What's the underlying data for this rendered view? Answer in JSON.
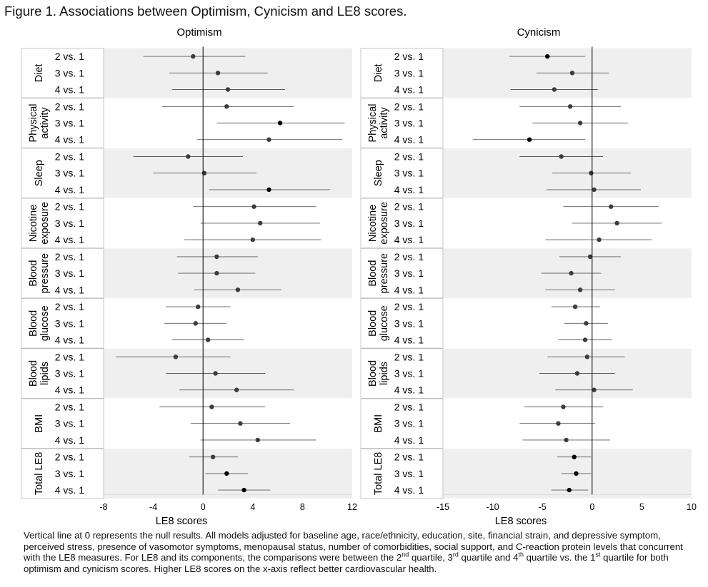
{
  "figure_title": "Figure 1. Associations between Optimism, Cynicism and LE8 scores.",
  "caption": {
    "line1": "Vertical line at 0 represents the null results. All models adjusted for baseline age, race/ethnicity, education, site, financial strain, and depressive symptom, perceived stress, presence of vasomotor symptoms, menopausal status, number of comorbidities, social support, and C-reaction protein levels that concurrent with the LE8 measures. For LE8 and its components, the comparisons were between the 2",
    "sup_nd": "nd",
    "line2": " quartile, 3",
    "sup_rd": "rd",
    "line3": " quartile and 4",
    "sup_th": "th",
    "line4": " quartile vs. the 1",
    "sup_st": "st",
    "line5": " quartile for both optimism and cynicism scores. Higher LE8 scores on the x-axis reflect better cardiovascular health."
  },
  "colors": {
    "band": "#efefef",
    "point_sig": "#000000",
    "point_ns": "#3c3c3c",
    "ci": "#5a5a5a",
    "axis": "#000000"
  },
  "chart_data": [
    {
      "type": "forest",
      "title": "Optimism",
      "xlabel": "LE8 scores",
      "xlim": [
        -8,
        12
      ],
      "xticks": [
        -8,
        -4,
        0,
        4,
        8,
        12
      ],
      "groups": [
        {
          "label": [
            "Diet"
          ],
          "rows": [
            {
              "label": "2 vs. 1",
              "est": -0.8,
              "lo": -4.8,
              "hi": 3.4
            },
            {
              "label": "3 vs. 1",
              "est": 1.2,
              "lo": -2.7,
              "hi": 5.2
            },
            {
              "label": "4 vs. 1",
              "est": 2.0,
              "lo": -2.5,
              "hi": 6.6
            }
          ]
        },
        {
          "label": [
            "Physical",
            "activity"
          ],
          "rows": [
            {
              "label": "2 vs. 1",
              "est": 1.9,
              "lo": -3.3,
              "hi": 7.3
            },
            {
              "label": "3 vs. 1",
              "est": 6.2,
              "lo": 1.1,
              "hi": 11.4
            },
            {
              "label": "4 vs. 1",
              "est": 5.3,
              "lo": -0.5,
              "hi": 11.2
            }
          ]
        },
        {
          "label": [
            "Sleep"
          ],
          "rows": [
            {
              "label": "2 vs. 1",
              "est": -1.2,
              "lo": -5.6,
              "hi": 3.2
            },
            {
              "label": "3 vs. 1",
              "est": 0.1,
              "lo": -4.0,
              "hi": 4.3
            },
            {
              "label": "4 vs. 1",
              "est": 5.3,
              "lo": 0.5,
              "hi": 10.2
            }
          ]
        },
        {
          "label": [
            "Nicotine",
            "exposure"
          ],
          "rows": [
            {
              "label": "2 vs. 1",
              "est": 4.1,
              "lo": -0.8,
              "hi": 9.1
            },
            {
              "label": "3 vs. 1",
              "est": 4.6,
              "lo": -0.2,
              "hi": 9.4
            },
            {
              "label": "4 vs. 1",
              "est": 4.0,
              "lo": -1.5,
              "hi": 9.5
            }
          ]
        },
        {
          "label": [
            "Blood",
            "pressure"
          ],
          "rows": [
            {
              "label": "2 vs. 1",
              "est": 1.1,
              "lo": -2.1,
              "hi": 4.4
            },
            {
              "label": "3 vs. 1",
              "est": 1.1,
              "lo": -2.0,
              "hi": 4.2
            },
            {
              "label": "4 vs. 1",
              "est": 2.8,
              "lo": -0.7,
              "hi": 6.3
            }
          ]
        },
        {
          "label": [
            "Blood",
            "glucose"
          ],
          "rows": [
            {
              "label": "2 vs. 1",
              "est": -0.4,
              "lo": -3.0,
              "hi": 2.2
            },
            {
              "label": "3 vs. 1",
              "est": -0.6,
              "lo": -3.1,
              "hi": 1.9
            },
            {
              "label": "4 vs. 1",
              "est": 0.4,
              "lo": -2.5,
              "hi": 3.3
            }
          ]
        },
        {
          "label": [
            "Blood",
            "lipids"
          ],
          "rows": [
            {
              "label": "2 vs. 1",
              "est": -2.2,
              "lo": -7.0,
              "hi": 2.2
            },
            {
              "label": "3 vs. 1",
              "est": 1.0,
              "lo": -3.0,
              "hi": 5.0
            },
            {
              "label": "4 vs. 1",
              "est": 2.7,
              "lo": -1.9,
              "hi": 7.3
            }
          ]
        },
        {
          "label": [
            "BMI"
          ],
          "rows": [
            {
              "label": "2 vs. 1",
              "est": 0.7,
              "lo": -3.5,
              "hi": 5.0
            },
            {
              "label": "3 vs. 1",
              "est": 3.0,
              "lo": -1.0,
              "hi": 7.0
            },
            {
              "label": "4 vs. 1",
              "est": 4.4,
              "lo": -0.2,
              "hi": 9.1
            }
          ]
        },
        {
          "label": [
            "Total LE8"
          ],
          "rows": [
            {
              "label": "2 vs. 1",
              "est": 0.8,
              "lo": -1.1,
              "hi": 2.8
            },
            {
              "label": "3 vs. 1",
              "est": 1.9,
              "lo": 0.2,
              "hi": 3.6
            },
            {
              "label": "4 vs. 1",
              "est": 3.3,
              "lo": 1.2,
              "hi": 5.4
            }
          ]
        }
      ]
    },
    {
      "type": "forest",
      "title": "Cynicism",
      "xlabel": "LE8 scores",
      "xlim": [
        -15,
        10
      ],
      "xticks": [
        -15,
        -10,
        -5,
        0,
        5,
        10
      ],
      "groups": [
        {
          "label": [
            "Diet"
          ],
          "rows": [
            {
              "label": "2 vs. 1",
              "est": -4.5,
              "lo": -8.3,
              "hi": -0.7
            },
            {
              "label": "3 vs. 1",
              "est": -2.0,
              "lo": -5.6,
              "hi": 1.7
            },
            {
              "label": "4 vs. 1",
              "est": -3.8,
              "lo": -8.2,
              "hi": 0.6
            }
          ]
        },
        {
          "label": [
            "Physical",
            "activity"
          ],
          "rows": [
            {
              "label": "2 vs. 1",
              "est": -2.2,
              "lo": -7.3,
              "hi": 2.9
            },
            {
              "label": "3 vs. 1",
              "est": -1.2,
              "lo": -6.0,
              "hi": 3.6
            },
            {
              "label": "4 vs. 1",
              "est": -6.3,
              "lo": -12.0,
              "hi": -0.7
            }
          ]
        },
        {
          "label": [
            "Sleep"
          ],
          "rows": [
            {
              "label": "2 vs. 1",
              "est": -3.1,
              "lo": -7.3,
              "hi": 1.1
            },
            {
              "label": "3 vs. 1",
              "est": -0.1,
              "lo": -4.0,
              "hi": 3.9
            },
            {
              "label": "4 vs. 1",
              "est": 0.2,
              "lo": -4.6,
              "hi": 4.9
            }
          ]
        },
        {
          "label": [
            "Nicotine",
            "exposure"
          ],
          "rows": [
            {
              "label": "2 vs. 1",
              "est": 1.9,
              "lo": -2.9,
              "hi": 6.7
            },
            {
              "label": "3 vs. 1",
              "est": 2.5,
              "lo": -2.0,
              "hi": 7.0
            },
            {
              "label": "4 vs. 1",
              "est": 0.7,
              "lo": -4.7,
              "hi": 6.0
            }
          ]
        },
        {
          "label": [
            "Blood",
            "pressure"
          ],
          "rows": [
            {
              "label": "2 vs. 1",
              "est": -0.2,
              "lo": -3.3,
              "hi": 2.9
            },
            {
              "label": "3 vs. 1",
              "est": -2.1,
              "lo": -5.1,
              "hi": 0.9
            },
            {
              "label": "4 vs. 1",
              "est": -1.2,
              "lo": -4.7,
              "hi": 2.3
            }
          ]
        },
        {
          "label": [
            "Blood",
            "glucose"
          ],
          "rows": [
            {
              "label": "2 vs. 1",
              "est": -1.7,
              "lo": -4.1,
              "hi": 0.8
            },
            {
              "label": "3 vs. 1",
              "est": -0.6,
              "lo": -2.8,
              "hi": 1.6
            },
            {
              "label": "4 vs. 1",
              "est": -0.7,
              "lo": -3.4,
              "hi": 2.0
            }
          ]
        },
        {
          "label": [
            "Blood",
            "lipids"
          ],
          "rows": [
            {
              "label": "2 vs. 1",
              "est": -0.5,
              "lo": -4.5,
              "hi": 3.3
            },
            {
              "label": "3 vs. 1",
              "est": -1.5,
              "lo": -5.3,
              "hi": 2.3
            },
            {
              "label": "4 vs. 1",
              "est": 0.2,
              "lo": -3.7,
              "hi": 4.1
            }
          ]
        },
        {
          "label": [
            "BMI"
          ],
          "rows": [
            {
              "label": "2 vs. 1",
              "est": -2.9,
              "lo": -6.8,
              "hi": 1.1
            },
            {
              "label": "3 vs. 1",
              "est": -3.4,
              "lo": -7.3,
              "hi": 0.3
            },
            {
              "label": "4 vs. 1",
              "est": -2.6,
              "lo": -7.0,
              "hi": 1.8
            }
          ]
        },
        {
          "label": [
            "Total LE8"
          ],
          "rows": [
            {
              "label": "2 vs. 1",
              "est": -1.8,
              "lo": -3.5,
              "hi": -0.1
            },
            {
              "label": "3 vs. 1",
              "est": -1.6,
              "lo": -3.1,
              "hi": -0.1
            },
            {
              "label": "4 vs. 1",
              "est": -2.3,
              "lo": -4.1,
              "hi": -0.4
            }
          ]
        }
      ]
    }
  ]
}
